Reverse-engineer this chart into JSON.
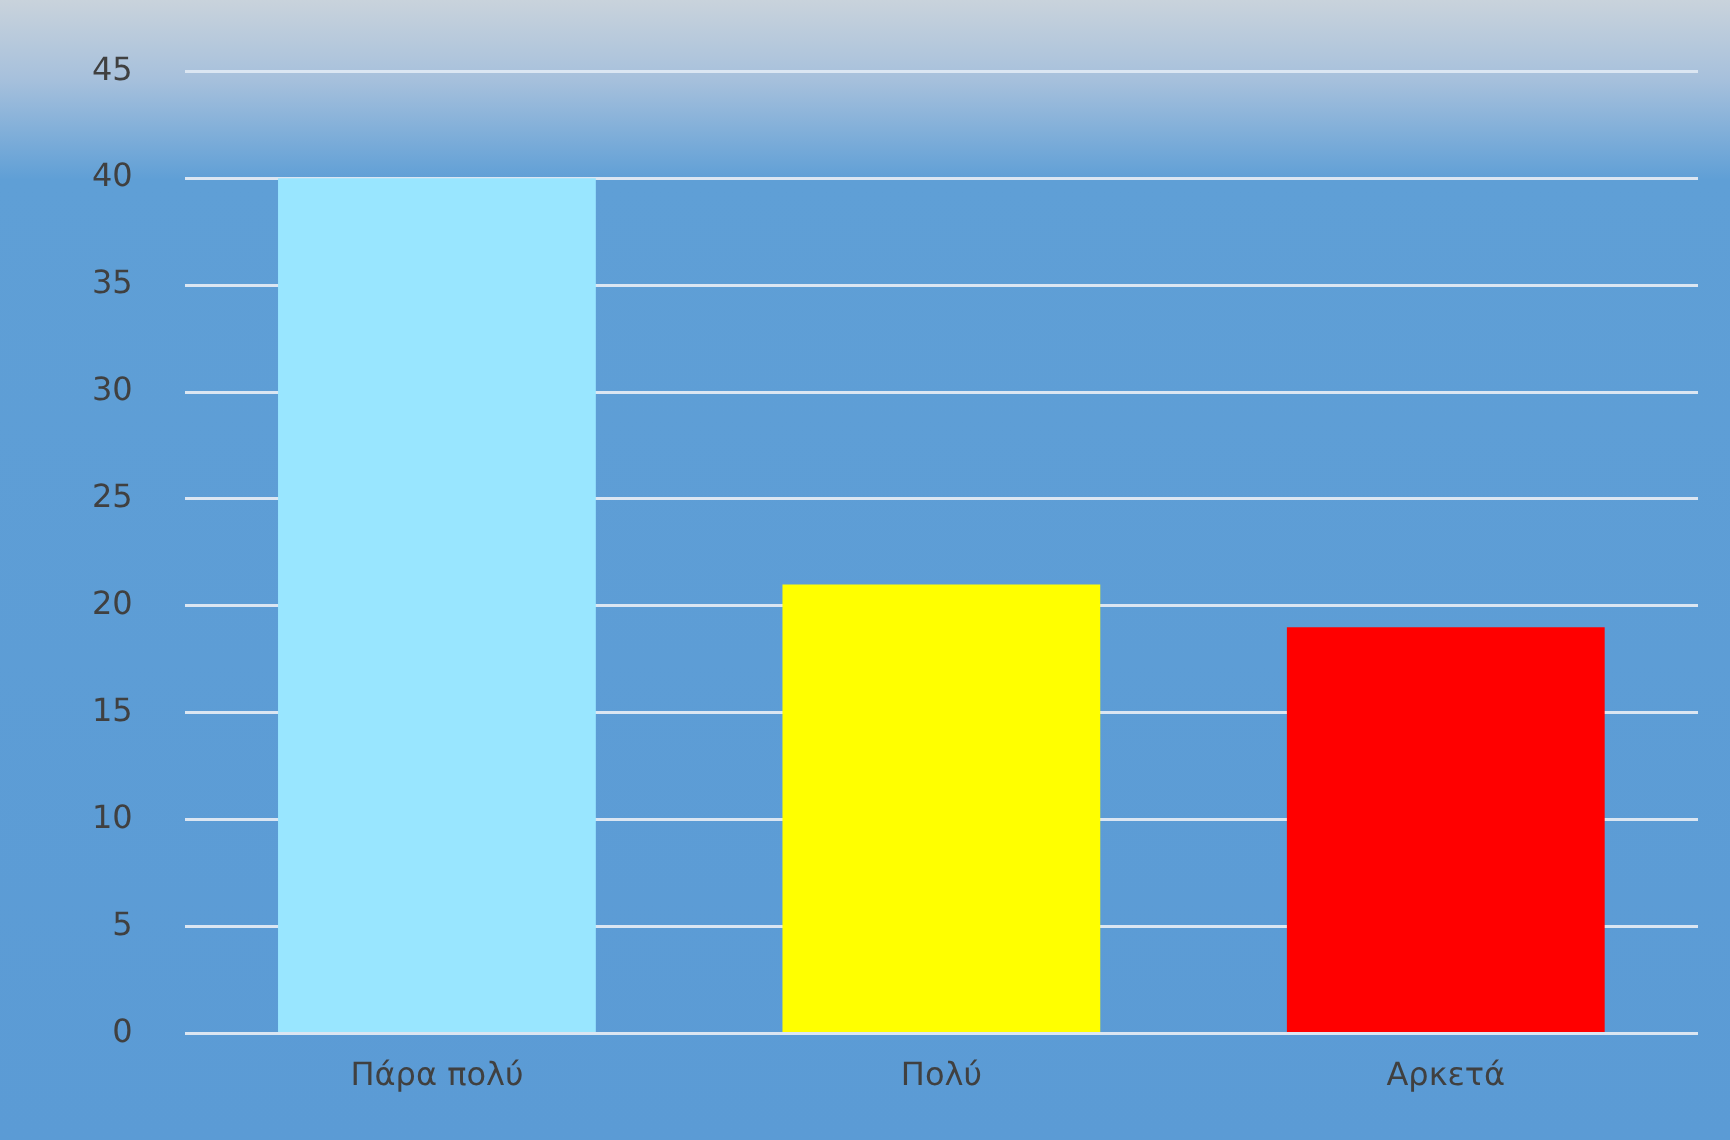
{
  "chart_data": {
    "type": "bar",
    "categories": [
      "Πάρα πολύ",
      "Πολύ",
      "Αρκετά"
    ],
    "values": [
      40,
      21,
      19
    ],
    "colors": [
      "#99e6ff",
      "#ffff00",
      "#ff0000"
    ],
    "ylim": [
      0,
      45
    ],
    "yticks": [
      0,
      5,
      10,
      15,
      20,
      25,
      30,
      35,
      40,
      45
    ],
    "grid": "y",
    "legend": false
  }
}
